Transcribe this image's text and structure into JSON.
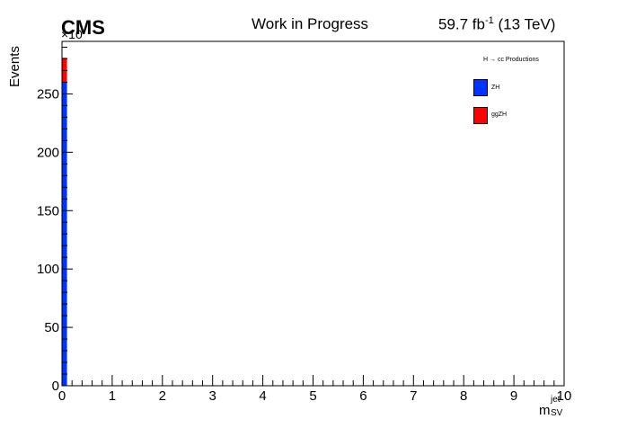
{
  "header": {
    "experiment": "CMS",
    "status": "Work in Progress",
    "lumi_value": "59.7 fb",
    "lumi_exp": "-1",
    "lumi_energy": " (13 TeV)",
    "y_exponent": "×10"
  },
  "chart_data": {
    "type": "bar",
    "stacked": true,
    "xlabel_main": "m",
    "xlabel_sup": "jet",
    "xlabel_sub": "SV",
    "ylabel": "Events",
    "xlim": [
      0,
      10
    ],
    "ylim": [
      0,
      295
    ],
    "x_ticks": [
      "0",
      "1",
      "2",
      "3",
      "4",
      "5",
      "6",
      "7",
      "8",
      "9",
      "10"
    ],
    "y_ticks": [
      "0",
      "50",
      "100",
      "150",
      "200",
      "250"
    ],
    "y_tick_values": [
      0,
      50,
      100,
      150,
      200,
      250
    ],
    "bins": [
      [
        0,
        0.1
      ]
    ],
    "legend_title": "H → cc Productions",
    "legend_position": "top-right",
    "grid": false,
    "series": [
      {
        "name": "ZH",
        "color": "#0033ff",
        "values": [
          260
        ]
      },
      {
        "name": "ggZH",
        "color": "#ff0000",
        "values": [
          21
        ]
      }
    ]
  }
}
